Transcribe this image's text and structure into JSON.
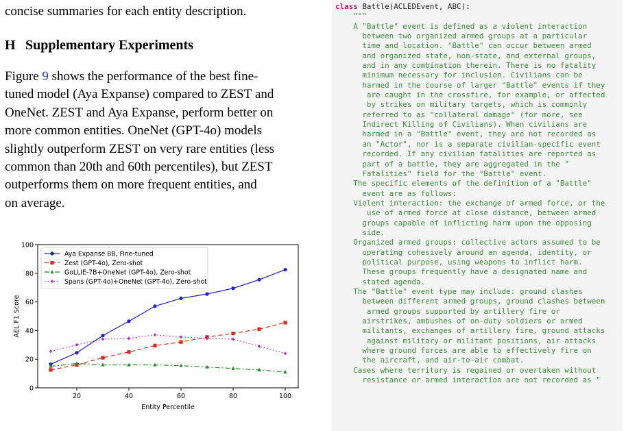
{
  "left_text": {
    "top_line": "concise summaries for each entity description.",
    "heading_number": "H",
    "heading_title": "Supplementary Experiments",
    "body": [
      {
        "pre": "Figure ",
        "link": "9",
        "post": " shows the performance of the best fine-"
      },
      {
        "pre": "tuned model (Aya Expanse) compared to Z",
        "sc": "EST",
        "post": " and"
      },
      {
        "pre": "OneNet. Z",
        "sc": "EST",
        "post": " and Aya Expanse, perform better on"
      },
      {
        "pre": "more common entities. OneNet (GPT-4o) models",
        "post": ""
      },
      {
        "pre": "slightly outperform Z",
        "sc": "EST",
        "post": " on very rare entities (less"
      },
      {
        "pre": "common than 20th and 60th percentiles), but Z",
        "sc": "EST",
        "post": ""
      },
      {
        "pre": "outperforms them on more frequent entities, and",
        "post": ""
      },
      {
        "pre": "on average.",
        "post": ""
      }
    ]
  },
  "chart_data": {
    "type": "line",
    "xlabel": "Entity Percentile",
    "ylabel": "AEL F1 Score",
    "xlim": [
      5,
      105
    ],
    "ylim": [
      0,
      100
    ],
    "xticks": [
      20,
      40,
      60,
      80,
      100
    ],
    "yticks": [
      0,
      20,
      40,
      60,
      80,
      100
    ],
    "legend_position": "top-left",
    "x": [
      10,
      20,
      30,
      40,
      50,
      60,
      70,
      80,
      90,
      100
    ],
    "series": [
      {
        "name": "Aya Expanse 8B, Fine-tuned",
        "color": "#1f1fd6",
        "dash": "",
        "marker": "circle",
        "values": [
          16.5,
          24.5,
          36.5,
          46.5,
          57,
          62.5,
          65.5,
          69.5,
          75.5,
          82.5
        ]
      },
      {
        "name": "Zest (GPT-4o), Zero-shot",
        "color": "#e3241b",
        "dash": "6,4",
        "marker": "square",
        "values": [
          12.5,
          16,
          21,
          25,
          29.5,
          32,
          35.5,
          38,
          41,
          45.5
        ]
      },
      {
        "name": "GoLLIE-7B+OneNet (GPT-4o), Zero-shot",
        "color": "#2a8a2a",
        "dash": "7,3,2,3",
        "marker": "triangle",
        "values": [
          15,
          17,
          16,
          16,
          16,
          15.5,
          14.5,
          13.5,
          12.5,
          11
        ]
      },
      {
        "name": "Spans (GPT-4o)+OneNet (GPT-4o), Zero-shot",
        "color": "#c41ec4",
        "dash": "1.5,3",
        "marker": "diamond",
        "values": [
          25.5,
          30,
          34,
          34.5,
          37,
          35.5,
          34.5,
          34,
          29,
          24
        ]
      }
    ]
  },
  "code": {
    "keyword": "class",
    "signature": " Battle(ACLEDEvent, ABC):",
    "lines": [
      "    \"\"\"",
      "    A \"Battle\" event is defined as a violent interaction",
      "      between two organized armed groups at a particular",
      "      time and location. \"Battle\" can occur between armed",
      "      and organized state, non-state, and external groups,",
      "      and in any combination therein. There is no fatality",
      "      minimum necessary for inclusion. Civilians can be",
      "      harmed in the course of larger \"Battle\" events if they",
      "       are caught in the crossfire, for example, or affected",
      "       by strikes on military targets, which is commonly",
      "      referred to as \"collateral damage\" (for more, see",
      "      Indirect Killing of Civilians). When civilians are",
      "      harmed in a \"Battle\" event, they are not recorded as",
      "      an \"Actor\", nor is a separate civilian-specific event",
      "      recorded. If any civilian fatalities are reported as",
      "      part of a battle, they are aggregated in the \"",
      "      Fatalities\" field for the \"Battle\" event.",
      "    The specific elements of the definition of a \"Battle\"",
      "      event are as follows:",
      "    Violent interaction: the exchange of armed force, or the",
      "       use of armed force at close distance, between armed",
      "      groups capable of inflicting harm upon the opposing",
      "      side.",
      "    Organized armed groups: collective actors assumed to be",
      "      operating cohesively around an agenda, identity, or",
      "      political purpose, using weapons to inflict harm.",
      "      These groups frequently have a designated name and",
      "      stated agenda.",
      "    The \"Battle\" event type may include: ground clashes",
      "      between different armed groups, ground clashes between",
      "       armed groups supported by artillery fire or",
      "      airstrikes, ambushes of on-duty soldiers or armed",
      "      militants, exchanges of artillery fire, ground attacks",
      "       against military or militant positions, air attacks",
      "      where ground forces are able to effectively fire on",
      "      the aircraft, and air-to-air combat.",
      "    Cases where territory is regained or overtaken without",
      "      resistance or armed interaction are not recorded as \""
    ]
  }
}
